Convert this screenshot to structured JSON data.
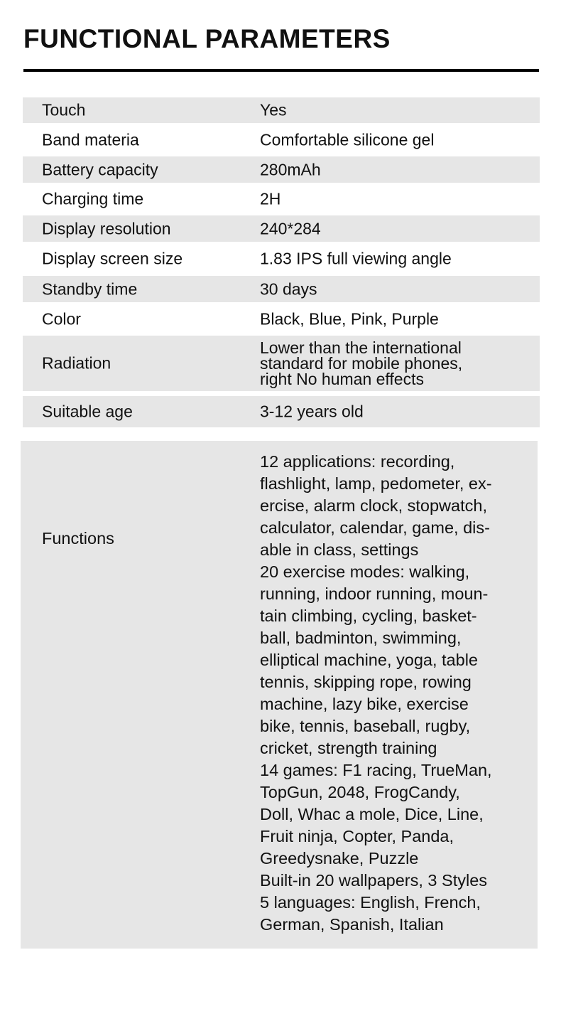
{
  "title": "FUNCTIONAL PARAMETERS",
  "rows": [
    {
      "label": "Touch",
      "value": [
        "Yes"
      ]
    },
    {
      "label": "Band materia",
      "value": [
        "Comfortable silicone gel"
      ]
    },
    {
      "label": "Battery capacity",
      "value": [
        "280mAh"
      ]
    },
    {
      "label": "Charging time",
      "value": [
        "2H"
      ]
    },
    {
      "label": "Display resolution",
      "value": [
        "240*284"
      ]
    },
    {
      "label": "Display screen size",
      "value": [
        "1.83 IPS full viewing angle"
      ]
    },
    {
      "label": "Standby time",
      "value": [
        "30 days"
      ]
    },
    {
      "label": "Color",
      "value": [
        "Black, Blue, Pink, Purple"
      ]
    },
    {
      "label": "Radiation",
      "value": [
        "Lower than the international",
        "standard for mobile phones,",
        "right No human effects"
      ]
    },
    {
      "label": "Suitable age",
      "value": [
        "3-12 years old"
      ]
    }
  ],
  "functions": {
    "label": "Functions",
    "lines": [
      "12 applications: recording,",
      "flashlight, lamp, pedometer, ex-",
      "ercise, alarm clock, stopwatch,",
      "calculator, calendar, game, dis-",
      "able in class, settings",
      "20 exercise modes: walking,",
      "running, indoor running, moun-",
      "tain climbing, cycling, basket-",
      "ball, badminton, swimming,",
      "elliptical machine, yoga, table",
      "tennis, skipping rope, rowing",
      "machine, lazy bike, exercise",
      "bike, tennis, baseball, rugby,",
      "cricket, strength training",
      "14 games: F1 racing, TrueMan,",
      "TopGun, 2048, FrogCandy,",
      "Doll, Whac a mole, Dice, Line,",
      "Fruit ninja, Copter, Panda,",
      "Greedysnake, Puzzle",
      "Built-in 20 wallpapers, 3 Styles",
      "5 languages: English, French,",
      "German, Spanish, Italian"
    ]
  },
  "colors": {
    "row_gray": "#e6e6e6",
    "text": "#111111"
  }
}
